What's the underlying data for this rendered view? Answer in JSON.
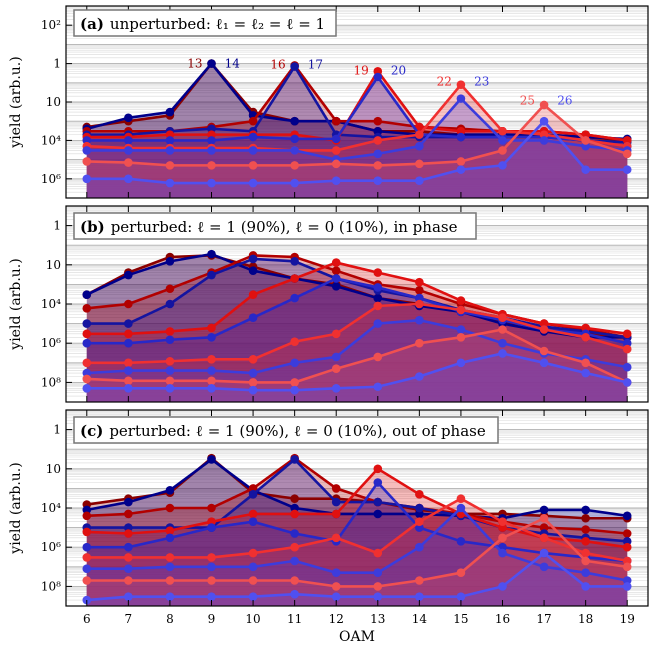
{
  "figure": {
    "xlabel": "OAM"
  },
  "chart_data": [
    {
      "type": "area",
      "panel": "(a)",
      "title": "unperturbed: ℓ₁ = ℓ₂ = ℓ = 1",
      "ylabel": "yield (arb.u.)",
      "yscale": "log",
      "ylim": [
        1e-07,
        1000.0
      ],
      "yticks": [
        "10⁶",
        "10⁴",
        "10⁲",
        "1",
        "10²"
      ],
      "ytick_values": [
        1e-06,
        0.0001,
        0.01,
        1,
        100
      ],
      "xlim": [
        5.5,
        19.5
      ],
      "x": [
        6,
        7,
        8,
        9,
        10,
        11,
        12,
        13,
        14,
        15,
        16,
        17,
        18,
        19
      ],
      "grid": true,
      "annotations": [
        {
          "text": "13",
          "x": 8.6,
          "y": 1.0,
          "color": "#8b0000"
        },
        {
          "text": "14",
          "x": 9.5,
          "y": 1.0,
          "color": "#00008b"
        },
        {
          "text": "16",
          "x": 10.6,
          "y": 0.9,
          "color": "#b20000"
        },
        {
          "text": "17",
          "x": 11.5,
          "y": 0.9,
          "color": "#1414a0"
        },
        {
          "text": "19",
          "x": 12.6,
          "y": 0.45,
          "color": "#e01010"
        },
        {
          "text": "20",
          "x": 13.5,
          "y": 0.45,
          "color": "#2828c8"
        },
        {
          "text": "22",
          "x": 14.6,
          "y": 0.12,
          "color": "#f03030"
        },
        {
          "text": "23",
          "x": 15.5,
          "y": 0.12,
          "color": "#3c3cdc"
        },
        {
          "text": "25",
          "x": 16.6,
          "y": 0.012,
          "color": "#f05050"
        },
        {
          "text": "26",
          "x": 17.5,
          "y": 0.012,
          "color": "#5050f0"
        }
      ],
      "series": [
        {
          "color": "#8b0000",
          "values": [
            0.0005,
            0.001,
            0.002,
            1.0,
            0.003,
            0.001,
            0.001,
            0.0003,
            0.0003,
            0.0002,
            0.0002,
            0.0002,
            0.00015,
            0.0001
          ]
        },
        {
          "color": "#00008b",
          "values": [
            0.0004,
            0.0015,
            0.003,
            1.0,
            0.002,
            0.001,
            0.001,
            0.0003,
            0.0002,
            0.0002,
            0.0002,
            0.0002,
            0.00015,
            0.00012
          ]
        },
        {
          "color": "#b20000",
          "values": [
            0.0003,
            0.0003,
            0.0003,
            0.0005,
            0.001,
            0.8,
            0.001,
            0.001,
            0.0005,
            0.0004,
            0.0003,
            0.0003,
            0.0002,
            0.0001
          ]
        },
        {
          "color": "#1414a0",
          "values": [
            0.0002,
            0.0002,
            0.0003,
            0.0004,
            0.0003,
            0.7,
            0.0002,
            0.00015,
            0.00015,
            0.00015,
            0.00015,
            0.00015,
            0.0001,
            8e-05
          ]
        },
        {
          "color": "#e01010",
          "values": [
            0.00015,
            0.00015,
            0.0002,
            0.0002,
            0.0002,
            0.0002,
            0.0001,
            0.4,
            0.0005,
            0.0003,
            0.0003,
            0.0003,
            0.0002,
            0.0001
          ]
        },
        {
          "color": "#2828c8",
          "values": [
            0.0001,
            0.0001,
            0.0001,
            0.0001,
            0.00015,
            0.00012,
            0.00012,
            0.2,
            0.0002,
            0.00015,
            0.00015,
            0.00015,
            0.0001,
            5e-05
          ]
        },
        {
          "color": "#f03030",
          "values": [
            5e-05,
            4e-05,
            4e-05,
            4e-05,
            4e-05,
            3e-05,
            3e-05,
            0.0001,
            0.0002,
            0.08,
            0.0003,
            0.0002,
            0.0001,
            5e-05
          ]
        },
        {
          "color": "#3c3cdc",
          "values": [
            3e-05,
            3e-05,
            3e-05,
            3e-05,
            3e-05,
            3e-05,
            1e-05,
            2e-05,
            5e-05,
            0.015,
            0.0001,
            0.0001,
            5e-05,
            3e-05
          ]
        },
        {
          "color": "#f05050",
          "values": [
            8e-06,
            7e-06,
            5e-06,
            5e-06,
            5e-06,
            5e-06,
            6e-06,
            5e-06,
            6e-06,
            8e-06,
            3e-05,
            0.007,
            0.0001,
            2e-05
          ]
        },
        {
          "color": "#5050f0",
          "values": [
            1e-06,
            1e-06,
            6e-07,
            6e-07,
            6e-07,
            6e-07,
            8e-07,
            8e-07,
            8e-07,
            3e-06,
            5e-06,
            0.001,
            3e-06,
            3e-06
          ]
        }
      ]
    },
    {
      "type": "area",
      "panel": "(b)",
      "title": "perturbed: ℓ = 1 (90%), ℓ = 0 (10%), in phase",
      "ylabel": "yield (arb.u.)",
      "yscale": "log",
      "ylim": [
        1e-09,
        10
      ],
      "yticks": [
        "10⁸",
        "10⁶",
        "10⁴",
        "10⁲",
        "1"
      ],
      "ytick_values": [
        1e-08,
        1e-06,
        0.0001,
        0.01,
        1
      ],
      "xlim": [
        5.5,
        19.5
      ],
      "x": [
        6,
        7,
        8,
        9,
        10,
        11,
        12,
        13,
        14,
        15,
        16,
        17,
        18,
        19
      ],
      "grid": true,
      "series": [
        {
          "color": "#8b0000",
          "values": [
            0.0003,
            0.004,
            0.025,
            0.03,
            0.008,
            0.002,
            0.001,
            0.0002,
            0.0001,
            5e-05,
            1.2e-05,
            7e-06,
            3e-06,
            2e-06
          ]
        },
        {
          "color": "#00008b",
          "values": [
            0.0003,
            0.003,
            0.015,
            0.035,
            0.005,
            0.002,
            0.0008,
            0.0002,
            8e-05,
            4e-05,
            1e-05,
            4e-06,
            2e-06,
            2e-06
          ]
        },
        {
          "color": "#b20000",
          "values": [
            6e-05,
            0.0001,
            0.0006,
            0.004,
            0.03,
            0.025,
            0.005,
            0.001,
            0.0005,
            0.0001,
            3e-05,
            1e-05,
            5e-06,
            2e-06
          ]
        },
        {
          "color": "#1414a0",
          "values": [
            1e-05,
            1e-05,
            0.0001,
            0.003,
            0.02,
            0.015,
            0.002,
            0.0005,
            0.0002,
            5e-05,
            2e-05,
            7e-06,
            4e-06,
            2e-06
          ]
        },
        {
          "color": "#e01010",
          "values": [
            3e-06,
            3e-06,
            4e-06,
            6e-06,
            0.0003,
            0.002,
            0.013,
            0.004,
            0.0013,
            0.00015,
            3e-05,
            1e-05,
            6e-06,
            3e-06
          ]
        },
        {
          "color": "#2828c8",
          "values": [
            1e-06,
            1e-06,
            1.5e-06,
            2e-06,
            2e-05,
            0.0002,
            0.002,
            0.0007,
            0.0002,
            4e-05,
            1.5e-05,
            5e-06,
            3e-06,
            1e-06
          ]
        },
        {
          "color": "#f03030",
          "values": [
            1e-07,
            1e-07,
            1.2e-07,
            1.5e-07,
            1.5e-07,
            1.2e-06,
            3e-06,
            8e-05,
            0.0001,
            5e-05,
            2e-05,
            5e-06,
            2e-06,
            5e-07
          ]
        },
        {
          "color": "#3c3cdc",
          "values": [
            3e-08,
            4e-08,
            4e-08,
            4e-08,
            3e-08,
            1e-07,
            2e-07,
            1e-05,
            1.5e-05,
            5e-06,
            1e-06,
            3e-07,
            1.5e-07,
            6e-08
          ]
        },
        {
          "color": "#f05050",
          "values": [
            1.5e-08,
            1.2e-08,
            1.2e-08,
            1.2e-08,
            1e-08,
            1e-08,
            5e-08,
            2e-07,
            1e-06,
            2e-06,
            5e-06,
            4e-07,
            1e-07,
            1e-08
          ]
        },
        {
          "color": "#5050f0",
          "values": [
            5e-09,
            5e-09,
            5e-09,
            5e-09,
            4e-09,
            4e-09,
            5e-09,
            6e-09,
            2e-08,
            1e-07,
            3e-07,
            1e-07,
            3e-08,
            1e-08
          ]
        }
      ]
    },
    {
      "type": "area",
      "panel": "(c)",
      "title": "perturbed: ℓ = 1 (90%), ℓ = 0 (10%), out of phase",
      "ylabel": "yield (arb.u.)",
      "yscale": "log",
      "ylim": [
        1e-09,
        10
      ],
      "yticks": [
        "10⁸",
        "10⁶",
        "10⁴",
        "10⁲",
        "1"
      ],
      "ytick_values": [
        1e-08,
        1e-06,
        0.0001,
        0.01,
        1
      ],
      "xlim": [
        5.5,
        19.5
      ],
      "x": [
        6,
        7,
        8,
        9,
        10,
        11,
        12,
        13,
        14,
        15,
        16,
        17,
        18,
        19
      ],
      "grid": true,
      "series": [
        {
          "color": "#8b0000",
          "values": [
            0.00015,
            0.0003,
            0.0006,
            0.035,
            0.0006,
            0.0003,
            0.0003,
            0.0002,
            8e-05,
            5e-05,
            5e-05,
            4e-05,
            3e-05,
            3e-05
          ]
        },
        {
          "color": "#00008b",
          "values": [
            8e-05,
            0.0002,
            0.0008,
            0.03,
            0.0008,
            0.0001,
            5e-05,
            5e-05,
            5e-05,
            4e-05,
            3e-05,
            8e-05,
            8e-05,
            4e-05
          ]
        },
        {
          "color": "#b20000",
          "values": [
            4e-05,
            5e-05,
            0.0001,
            0.0001,
            0.001,
            0.035,
            0.001,
            0.0002,
            0.0001,
            5e-05,
            2e-05,
            1e-05,
            8e-06,
            5e-06
          ]
        },
        {
          "color": "#1414a0",
          "values": [
            1e-05,
            1e-05,
            1e-05,
            1e-05,
            0.0005,
            0.03,
            0.0002,
            0.0002,
            0.0001,
            4e-05,
            1e-05,
            5e-06,
            3e-06,
            2e-06
          ]
        },
        {
          "color": "#e01010",
          "values": [
            6e-06,
            5e-06,
            7e-06,
            2e-05,
            5e-05,
            5e-05,
            5e-05,
            0.01,
            0.0005,
            5e-05,
            1e-05,
            3e-06,
            2e-06,
            1e-06
          ]
        },
        {
          "color": "#2828c8",
          "values": [
            1e-06,
            1e-06,
            3e-06,
            1e-05,
            2e-05,
            5e-06,
            2e-06,
            0.002,
            1e-05,
            2e-06,
            1e-06,
            5e-07,
            3e-07,
            2e-07
          ]
        },
        {
          "color": "#f03030",
          "values": [
            3e-07,
            3e-07,
            3e-07,
            3e-07,
            5e-07,
            1e-06,
            3e-06,
            5e-07,
            2e-05,
            0.0003,
            2e-05,
            3e-06,
            5e-07,
            2e-07
          ]
        },
        {
          "color": "#3c3cdc",
          "values": [
            8e-08,
            8e-08,
            1e-07,
            1e-07,
            1e-07,
            2e-07,
            5e-08,
            5e-08,
            1e-06,
            0.0001,
            5e-07,
            1e-07,
            5e-08,
            2e-08
          ]
        },
        {
          "color": "#f05050",
          "values": [
            2e-08,
            2e-08,
            2e-08,
            2e-08,
            2e-08,
            2e-08,
            1e-08,
            1e-08,
            2e-08,
            5e-08,
            3e-06,
            3e-05,
            2e-07,
            1e-07
          ]
        },
        {
          "color": "#5050f0",
          "values": [
            2e-09,
            3e-09,
            3e-09,
            3e-09,
            3e-09,
            4e-09,
            3e-09,
            3e-09,
            3e-09,
            3e-09,
            1e-08,
            5e-07,
            1e-08,
            1e-08
          ]
        }
      ]
    }
  ]
}
